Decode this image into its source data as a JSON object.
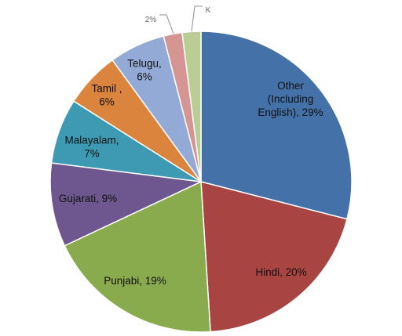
{
  "chart_data": {
    "type": "pie",
    "categories": [
      "Other (Including English)",
      "Hindi",
      "Punjabi",
      "Gujarati",
      "Malayalam",
      "Tamil",
      "Telugu",
      "",
      ""
    ],
    "values": [
      29,
      20,
      19,
      9,
      7,
      6,
      6,
      2,
      2
    ],
    "labels": [
      [
        "Other",
        "(Including",
        "English), 29%"
      ],
      [
        "Hindi, 20%"
      ],
      [
        "Punjabi, 19%"
      ],
      [
        "Gujarati, 9%"
      ],
      [
        "Malayalam,",
        "7%"
      ],
      [
        "Tamil ,",
        "6%"
      ],
      [
        "Telugu,",
        "6%"
      ],
      [
        "2%"
      ],
      [
        "K"
      ]
    ],
    "colors": [
      "#4472A8",
      "#A84442",
      "#8AAA4E",
      "#6E578F",
      "#3E9AB2",
      "#DB843D",
      "#94AAD6",
      "#D59693",
      "#B9CD94"
    ],
    "legend": "none"
  }
}
